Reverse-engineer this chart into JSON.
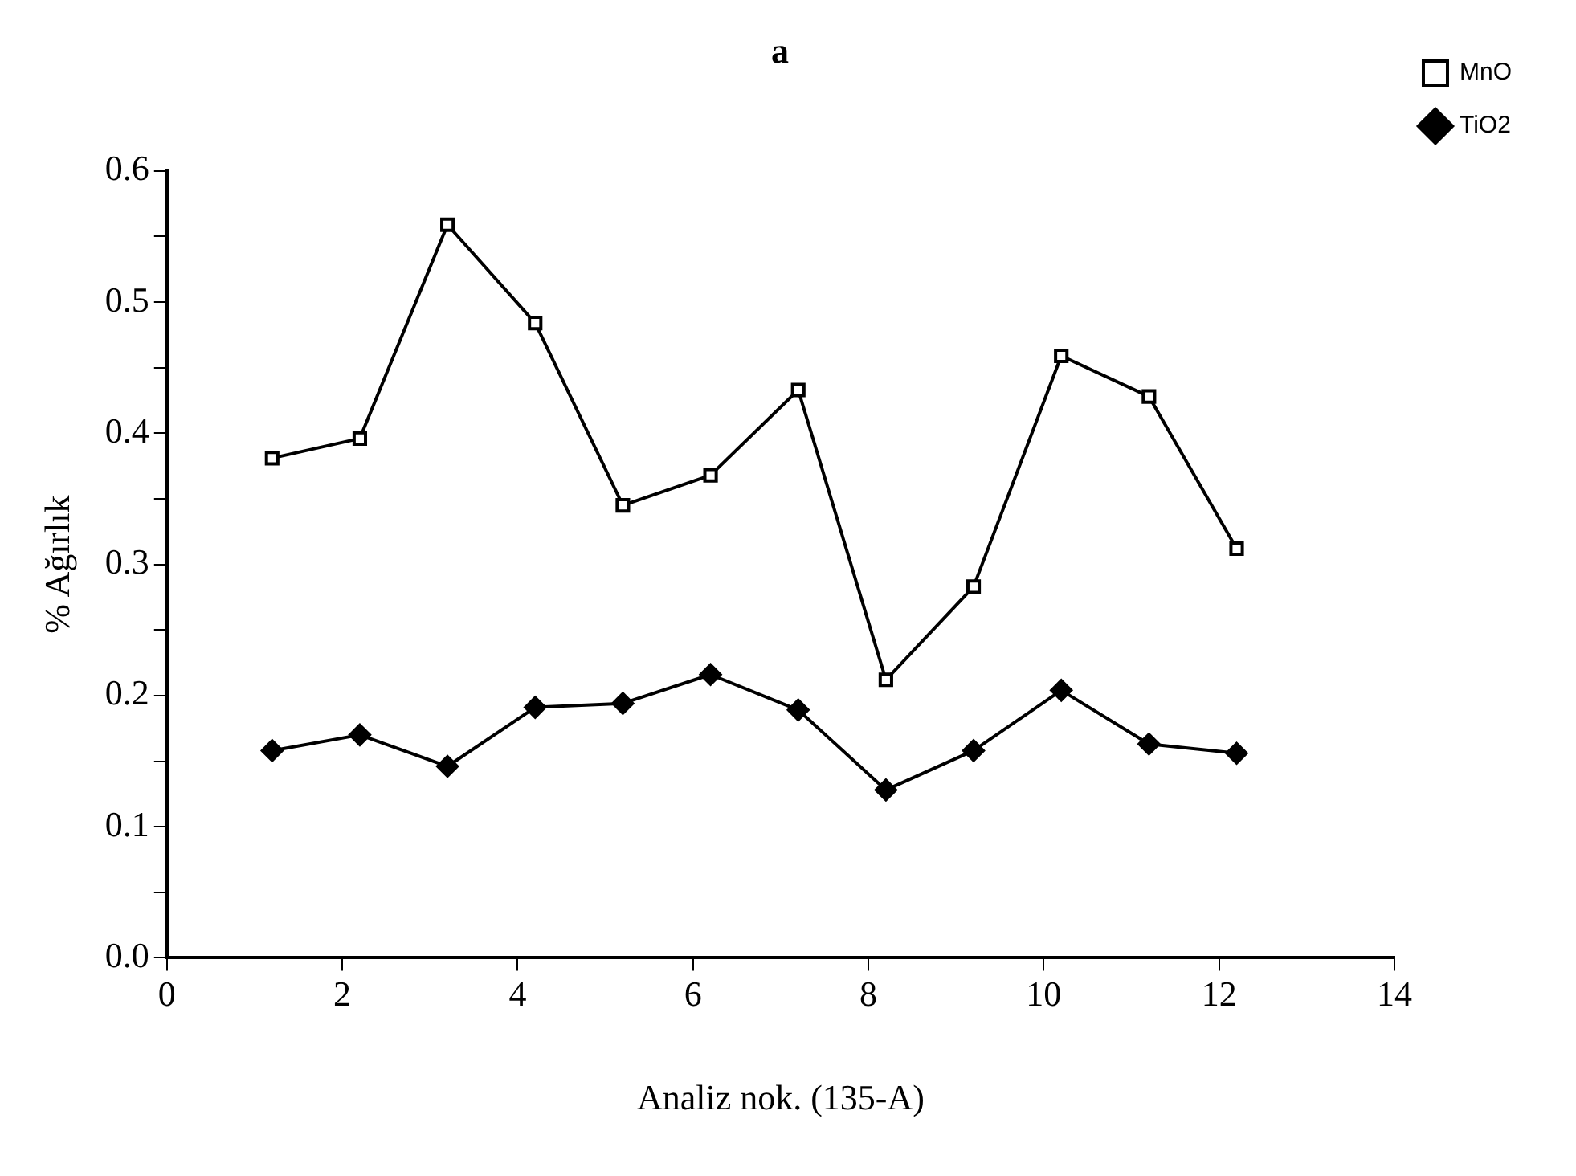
{
  "chart_data": {
    "type": "line",
    "title": "a",
    "xlabel": "Analiz nok. (135-A)",
    "ylabel": "% Ağırlık",
    "series": [
      {
        "name": "MnO",
        "color": "#000000",
        "marker": "square",
        "x": [
          1.2,
          2.2,
          3.2,
          4.2,
          5.2,
          6.2,
          7.2,
          8.2,
          9.2,
          10.2,
          11.2,
          12.2
        ],
        "values": [
          0.381,
          0.396,
          0.559,
          0.484,
          0.345,
          0.368,
          0.433,
          0.212,
          0.283,
          0.459,
          0.428,
          0.312
        ]
      },
      {
        "name": "TiO2",
        "color": "#000000",
        "marker": "diamond",
        "x": [
          1.2,
          2.2,
          3.2,
          4.2,
          5.2,
          6.2,
          7.2,
          8.2,
          9.2,
          10.2,
          11.2,
          12.2
        ],
        "values": [
          0.158,
          0.17,
          0.146,
          0.191,
          0.194,
          0.216,
          0.189,
          0.128,
          0.158,
          0.204,
          0.163,
          0.156
        ]
      }
    ],
    "xlim": [
      0,
      14
    ],
    "xticks": [
      0,
      2,
      4,
      6,
      8,
      10,
      12,
      14
    ],
    "ylim": [
      0,
      0.6
    ],
    "yticks": [
      {
        "value": 0,
        "label": "0.0"
      },
      {
        "value": 0.05,
        "label": null
      },
      0.1,
      {
        "value": 0.15,
        "label": null
      },
      0.2,
      {
        "value": 0.25,
        "label": null
      },
      0.3,
      {
        "value": 0.35,
        "label": null
      },
      0.4,
      {
        "value": 0.45,
        "label": null
      },
      0.5,
      {
        "value": 0.55,
        "label": null
      },
      0.6
    ],
    "grid": false,
    "legend": "right",
    "line_style": "solid"
  }
}
